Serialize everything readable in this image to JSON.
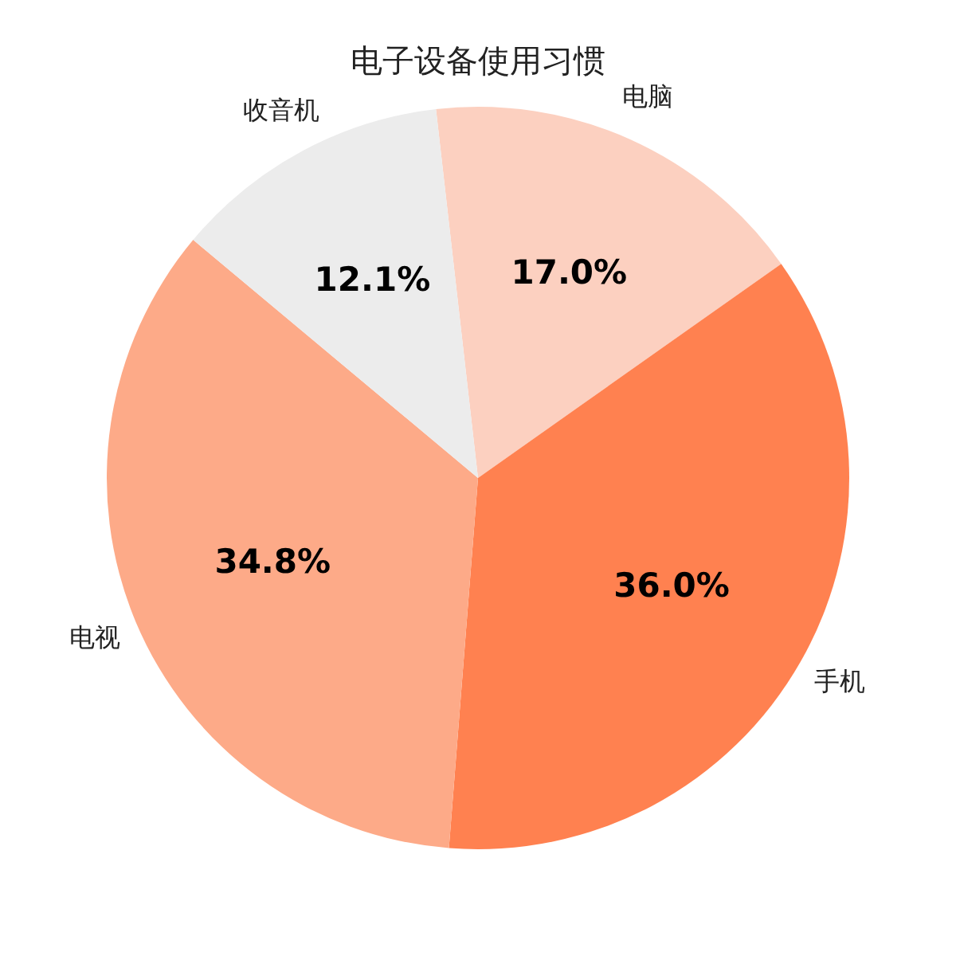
{
  "chart_data": {
    "type": "pie",
    "title": "电子设备使用习惯",
    "categories": [
      "电脑",
      "手机",
      "电视",
      "收音机"
    ],
    "values": [
      17.0,
      36.0,
      34.8,
      12.1
    ],
    "colors": [
      "#fcd0c0",
      "#ff8150",
      "#fdaa88",
      "#ececec"
    ],
    "value_labels": [
      "17.0%",
      "36.0%",
      "34.8%",
      "12.1%"
    ],
    "legend": false
  }
}
